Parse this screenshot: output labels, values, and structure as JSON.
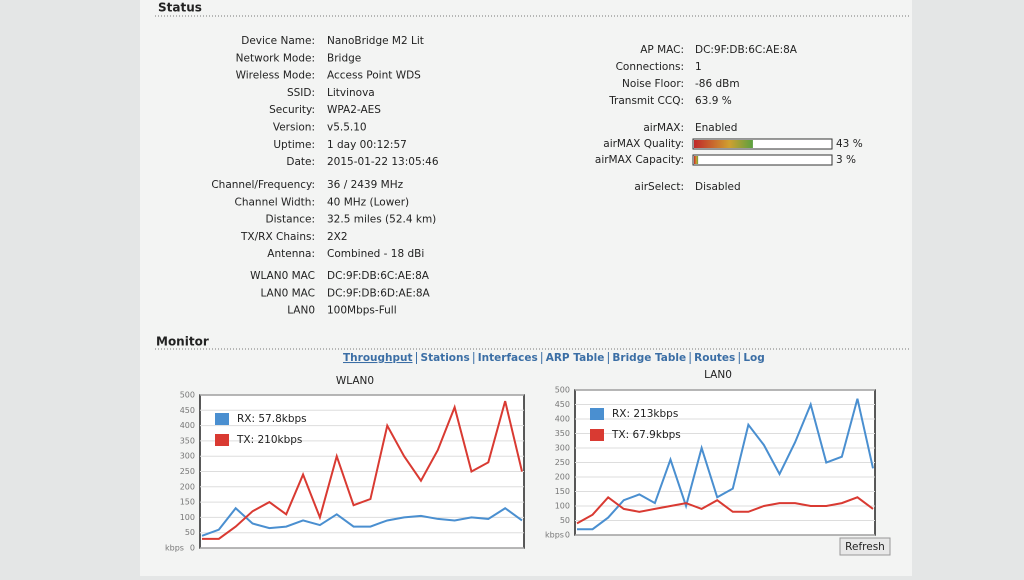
{
  "status": {
    "title": "Status",
    "left": [
      [
        {
          "label": "Device Name:",
          "value": "NanoBridge M2 Lit"
        },
        {
          "label": "Network Mode:",
          "value": "Bridge"
        },
        {
          "label": "Wireless Mode:",
          "value": "Access Point WDS"
        },
        {
          "label": "SSID:",
          "value": "Litvinova"
        },
        {
          "label": "Security:",
          "value": "WPA2-AES"
        },
        {
          "label": "Version:",
          "value": "v5.5.10"
        },
        {
          "label": "Uptime:",
          "value": "1 day 00:12:57"
        },
        {
          "label": "Date:",
          "value": "2015-01-22 13:05:46"
        }
      ],
      [
        {
          "label": "Channel/Frequency:",
          "value": "36 / 2439 MHz"
        },
        {
          "label": "Channel Width:",
          "value": "40 MHz (Lower)"
        },
        {
          "label": "Distance:",
          "value": "32.5 miles (52.4 km)"
        },
        {
          "label": "TX/RX Chains:",
          "value": "2X2"
        },
        {
          "label": "Antenna:",
          "value": "Combined - 18 dBi"
        }
      ],
      [
        {
          "label": "WLAN0 MAC",
          "value": "DC:9F:DB:6C:AE:8A"
        },
        {
          "label": "LAN0 MAC",
          "value": "DC:9F:DB:6D:AE:8A"
        },
        {
          "label": "LAN0",
          "value": "100Mbps-Full"
        }
      ]
    ],
    "right": [
      {
        "label": "AP MAC:",
        "value": "DC:9F:DB:6C:AE:8A"
      },
      {
        "label": "Connections:",
        "value": "1"
      },
      {
        "label": "Noise Floor:",
        "value": "-86 dBm"
      },
      {
        "label": "Transmit CCQ:",
        "value": "63.9 %"
      },
      {
        "label": "airMAX:",
        "value": "Enabled"
      }
    ],
    "meters": [
      {
        "label": "airMAX Quality:",
        "value": 43,
        "value_label": "43 %"
      },
      {
        "label": "airMAX Capacity:",
        "value": 3,
        "value_label": "3 %"
      }
    ],
    "airselect": {
      "label": "airSelect:",
      "value": "Disabled"
    }
  },
  "monitor": {
    "title": "Monitor",
    "tabs": [
      "Throughput",
      "Stations",
      "Interfaces",
      "ARP Table",
      "Bridge Table",
      "Routes",
      "Log"
    ]
  },
  "charts": [
    {
      "type": "line",
      "title": "WLAN0",
      "y_label": "kbps",
      "ylim": [
        0,
        500
      ],
      "yticks": [
        0,
        50,
        100,
        150,
        200,
        250,
        300,
        350,
        400,
        450,
        500
      ],
      "grid": true,
      "series": [
        {
          "name": "RX: 57.8kbps",
          "color": "#4a8fd0",
          "values": [
            40,
            60,
            130,
            80,
            65,
            70,
            90,
            75,
            110,
            70,
            70,
            90,
            100,
            105,
            95,
            90,
            100,
            95,
            130,
            90
          ]
        },
        {
          "name": "TX: 210kbps",
          "color": "#d93a32",
          "values": [
            30,
            30,
            70,
            120,
            150,
            110,
            240,
            100,
            300,
            140,
            160,
            400,
            300,
            220,
            320,
            460,
            250,
            280,
            480,
            250
          ]
        }
      ]
    },
    {
      "type": "line",
      "title": "LAN0",
      "y_label": "kbps",
      "ylim": [
        0,
        500
      ],
      "yticks": [
        0,
        50,
        100,
        150,
        200,
        250,
        300,
        350,
        400,
        450,
        500
      ],
      "grid": true,
      "series": [
        {
          "name": "RX: 213kbps",
          "color": "#4a8fd0",
          "values": [
            20,
            20,
            60,
            120,
            140,
            110,
            260,
            100,
            300,
            130,
            160,
            380,
            310,
            210,
            320,
            450,
            250,
            270,
            470,
            230
          ]
        },
        {
          "name": "TX: 67.9kbps",
          "color": "#d93a32",
          "values": [
            40,
            70,
            130,
            90,
            80,
            90,
            100,
            110,
            90,
            120,
            80,
            80,
            100,
            110,
            110,
            100,
            100,
            110,
            130,
            90
          ]
        }
      ]
    }
  ],
  "refresh": "Refresh"
}
